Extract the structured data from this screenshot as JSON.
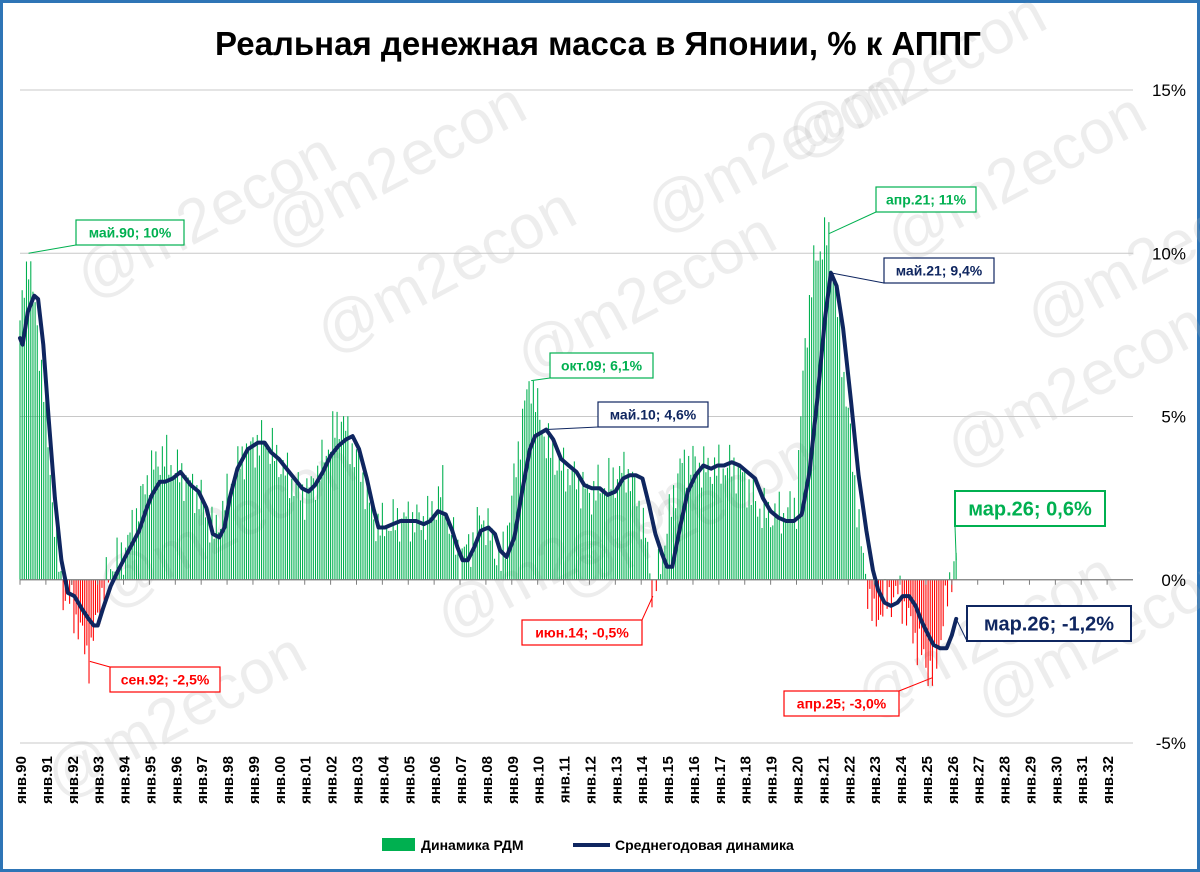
{
  "chart_data": {
    "type": "bar+line",
    "title": "Реальная денежная масса в Японии, % к АППГ",
    "y_range": [
      -5,
      15
    ],
    "y_ticks": [
      {
        "value": 15,
        "label": "15%"
      },
      {
        "value": 10,
        "label": "10%"
      },
      {
        "value": 5,
        "label": "5%"
      },
      {
        "value": 0,
        "label": "0%"
      },
      {
        "value": -5,
        "label": "-5%"
      }
    ],
    "x_range": [
      1990,
      2033
    ],
    "x_tick_labels": [
      "янв.90",
      "янв.91",
      "янв.92",
      "янв.93",
      "янв.94",
      "янв.95",
      "янв.96",
      "янв.97",
      "янв.98",
      "янв.99",
      "янв.00",
      "янв.01",
      "янв.02",
      "янв.03",
      "янв.04",
      "янв.05",
      "янв.06",
      "янв.07",
      "янв.08",
      "янв.09",
      "янв.10",
      "янв.11",
      "янв.12",
      "янв.13",
      "янв.14",
      "янв.15",
      "янв.16",
      "янв.17",
      "янв.18",
      "янв.19",
      "янв.20",
      "янв.21",
      "янв.22",
      "янв.23",
      "янв.24",
      "янв.25",
      "янв.26",
      "янв.27",
      "янв.28",
      "янв.29",
      "янв.30",
      "янв.31",
      "янв.32"
    ],
    "grid": true,
    "legend_position": "bottom",
    "positive_color": "#00b050",
    "negative_color": "#ff0000",
    "line_color": "#0f2660",
    "series": [
      {
        "name": "Динамика РДМ",
        "type": "bar",
        "keypoints": [
          [
            1990.0,
            7.8
          ],
          [
            1990.33,
            10.0
          ],
          [
            1990.9,
            6.0
          ],
          [
            1991.3,
            2.0
          ],
          [
            1991.6,
            -0.3
          ],
          [
            1992.0,
            -0.8
          ],
          [
            1992.7,
            -2.5
          ],
          [
            1993.0,
            -1.0
          ],
          [
            1993.5,
            0.4
          ],
          [
            1994.0,
            0.8
          ],
          [
            1994.5,
            2.0
          ],
          [
            1995.0,
            3.3
          ],
          [
            1995.5,
            3.8
          ],
          [
            1996.0,
            3.4
          ],
          [
            1996.5,
            3.0
          ],
          [
            1997.0,
            2.5
          ],
          [
            1997.5,
            1.4
          ],
          [
            1998.0,
            2.5
          ],
          [
            1998.5,
            3.7
          ],
          [
            1999.0,
            4.1
          ],
          [
            1999.5,
            4.3
          ],
          [
            2000.0,
            3.6
          ],
          [
            2000.5,
            3.0
          ],
          [
            2001.0,
            2.6
          ],
          [
            2001.5,
            3.2
          ],
          [
            2002.0,
            4.3
          ],
          [
            2002.4,
            5.0
          ],
          [
            2002.8,
            4.1
          ],
          [
            2003.3,
            3.0
          ],
          [
            2003.7,
            1.8
          ],
          [
            2004.0,
            1.6
          ],
          [
            2004.5,
            1.8
          ],
          [
            2005.0,
            1.9
          ],
          [
            2005.5,
            1.8
          ],
          [
            2006.0,
            2.1
          ],
          [
            2006.3,
            2.9
          ],
          [
            2006.6,
            1.6
          ],
          [
            2007.0,
            0.7
          ],
          [
            2007.5,
            1.2
          ],
          [
            2007.8,
            2.0
          ],
          [
            2008.2,
            1.3
          ],
          [
            2008.6,
            0.4
          ],
          [
            2009.0,
            2.5
          ],
          [
            2009.5,
            5.4
          ],
          [
            2009.75,
            6.1
          ],
          [
            2010.0,
            5.2
          ],
          [
            2010.33,
            4.2
          ],
          [
            2010.8,
            3.5
          ],
          [
            2011.5,
            3.1
          ],
          [
            2012.0,
            2.6
          ],
          [
            2012.5,
            2.9
          ],
          [
            2013.0,
            3.1
          ],
          [
            2013.4,
            3.4
          ],
          [
            2013.8,
            2.7
          ],
          [
            2014.2,
            1.2
          ],
          [
            2014.45,
            -0.5
          ],
          [
            2014.7,
            0.3
          ],
          [
            2015.0,
            1.6
          ],
          [
            2015.5,
            3.5
          ],
          [
            2016.0,
            3.6
          ],
          [
            2016.5,
            3.4
          ],
          [
            2017.0,
            3.4
          ],
          [
            2017.5,
            3.5
          ],
          [
            2018.0,
            3.1
          ],
          [
            2018.5,
            2.2
          ],
          [
            2019.0,
            2.0
          ],
          [
            2019.5,
            2.0
          ],
          [
            2020.0,
            2.3
          ],
          [
            2020.3,
            7.0
          ],
          [
            2020.7,
            9.8
          ],
          [
            2021.25,
            10.6
          ],
          [
            2021.6,
            8.0
          ],
          [
            2022.0,
            5.0
          ],
          [
            2022.5,
            1.0
          ],
          [
            2022.8,
            -0.5
          ],
          [
            2023.0,
            -1.3
          ],
          [
            2023.5,
            -0.6
          ],
          [
            2024.0,
            -0.4
          ],
          [
            2024.3,
            -1.2
          ],
          [
            2024.8,
            -2.2
          ],
          [
            2025.25,
            -3.0
          ],
          [
            2025.6,
            -1.6
          ],
          [
            2025.85,
            -0.4
          ],
          [
            2026.0,
            0.3
          ],
          [
            2026.17,
            0.6
          ]
        ]
      },
      {
        "name": "Среднегодовая динамика",
        "type": "line",
        "points": [
          [
            1990.0,
            7.4
          ],
          [
            1990.1,
            7.2
          ],
          [
            1990.3,
            8.2
          ],
          [
            1990.55,
            8.7
          ],
          [
            1990.7,
            8.6
          ],
          [
            1990.9,
            7.2
          ],
          [
            1991.1,
            5.0
          ],
          [
            1991.35,
            2.5
          ],
          [
            1991.6,
            0.6
          ],
          [
            1991.85,
            -0.4
          ],
          [
            1992.1,
            -0.5
          ],
          [
            1992.4,
            -0.9
          ],
          [
            1992.65,
            -1.2
          ],
          [
            1992.85,
            -1.4
          ],
          [
            1993.0,
            -1.4
          ],
          [
            1993.2,
            -0.9
          ],
          [
            1993.5,
            -0.2
          ],
          [
            1993.8,
            0.3
          ],
          [
            1994.2,
            0.9
          ],
          [
            1994.6,
            1.5
          ],
          [
            1994.9,
            2.2
          ],
          [
            1995.1,
            2.6
          ],
          [
            1995.4,
            3.0
          ],
          [
            1995.6,
            3.0
          ],
          [
            1995.9,
            3.1
          ],
          [
            1996.2,
            3.3
          ],
          [
            1996.6,
            2.9
          ],
          [
            1996.9,
            2.7
          ],
          [
            1997.2,
            2.2
          ],
          [
            1997.45,
            1.4
          ],
          [
            1997.7,
            1.3
          ],
          [
            1997.9,
            1.6
          ],
          [
            1998.1,
            2.5
          ],
          [
            1998.4,
            3.4
          ],
          [
            1998.8,
            4.0
          ],
          [
            1999.2,
            4.2
          ],
          [
            1999.45,
            4.2
          ],
          [
            1999.7,
            3.9
          ],
          [
            2000.0,
            3.7
          ],
          [
            2000.3,
            3.4
          ],
          [
            2000.6,
            3.1
          ],
          [
            2000.9,
            2.8
          ],
          [
            2001.15,
            2.7
          ],
          [
            2001.4,
            2.9
          ],
          [
            2001.7,
            3.3
          ],
          [
            2002.0,
            3.8
          ],
          [
            2002.3,
            4.1
          ],
          [
            2002.6,
            4.3
          ],
          [
            2002.85,
            4.4
          ],
          [
            2003.1,
            4.0
          ],
          [
            2003.4,
            3.1
          ],
          [
            2003.65,
            2.2
          ],
          [
            2003.85,
            1.6
          ],
          [
            2004.1,
            1.6
          ],
          [
            2004.4,
            1.7
          ],
          [
            2004.7,
            1.8
          ],
          [
            2005.0,
            1.8
          ],
          [
            2005.3,
            1.8
          ],
          [
            2005.6,
            1.7
          ],
          [
            2005.85,
            1.8
          ],
          [
            2006.15,
            2.1
          ],
          [
            2006.45,
            2.0
          ],
          [
            2006.7,
            1.5
          ],
          [
            2006.9,
            1.0
          ],
          [
            2007.1,
            0.6
          ],
          [
            2007.3,
            0.6
          ],
          [
            2007.55,
            1.0
          ],
          [
            2007.8,
            1.5
          ],
          [
            2008.1,
            1.6
          ],
          [
            2008.35,
            1.4
          ],
          [
            2008.55,
            0.9
          ],
          [
            2008.8,
            0.7
          ],
          [
            2009.1,
            1.3
          ],
          [
            2009.4,
            2.7
          ],
          [
            2009.7,
            4.0
          ],
          [
            2009.9,
            4.4
          ],
          [
            2010.33,
            4.6
          ],
          [
            2010.6,
            4.3
          ],
          [
            2010.9,
            3.7
          ],
          [
            2011.2,
            3.5
          ],
          [
            2011.5,
            3.3
          ],
          [
            2011.8,
            2.9
          ],
          [
            2012.1,
            2.8
          ],
          [
            2012.4,
            2.8
          ],
          [
            2012.7,
            2.6
          ],
          [
            2013.0,
            2.7
          ],
          [
            2013.3,
            3.1
          ],
          [
            2013.55,
            3.2
          ],
          [
            2013.8,
            3.2
          ],
          [
            2014.05,
            3.1
          ],
          [
            2014.3,
            2.3
          ],
          [
            2014.55,
            1.4
          ],
          [
            2014.8,
            0.8
          ],
          [
            2015.0,
            0.4
          ],
          [
            2015.2,
            0.4
          ],
          [
            2015.5,
            1.6
          ],
          [
            2015.8,
            2.7
          ],
          [
            2016.1,
            3.2
          ],
          [
            2016.4,
            3.5
          ],
          [
            2016.7,
            3.4
          ],
          [
            2016.95,
            3.5
          ],
          [
            2017.2,
            3.5
          ],
          [
            2017.5,
            3.6
          ],
          [
            2017.8,
            3.5
          ],
          [
            2018.1,
            3.3
          ],
          [
            2018.4,
            3.1
          ],
          [
            2018.7,
            2.5
          ],
          [
            2019.0,
            2.1
          ],
          [
            2019.3,
            1.9
          ],
          [
            2019.6,
            1.8
          ],
          [
            2019.9,
            1.8
          ],
          [
            2020.2,
            2.0
          ],
          [
            2020.5,
            3.3
          ],
          [
            2020.8,
            5.5
          ],
          [
            2021.1,
            8.0
          ],
          [
            2021.33,
            9.4
          ],
          [
            2021.55,
            9.0
          ],
          [
            2021.8,
            7.7
          ],
          [
            2022.1,
            5.5
          ],
          [
            2022.4,
            3.2
          ],
          [
            2022.7,
            1.5
          ],
          [
            2022.95,
            0.3
          ],
          [
            2023.15,
            -0.3
          ],
          [
            2023.4,
            -0.7
          ],
          [
            2023.65,
            -0.8
          ],
          [
            2023.9,
            -0.7
          ],
          [
            2024.1,
            -0.5
          ],
          [
            2024.35,
            -0.5
          ],
          [
            2024.6,
            -0.8
          ],
          [
            2024.85,
            -1.3
          ],
          [
            2025.1,
            -1.7
          ],
          [
            2025.3,
            -2.0
          ],
          [
            2025.55,
            -2.1
          ],
          [
            2025.8,
            -2.1
          ],
          [
            2026.0,
            -1.7
          ],
          [
            2026.17,
            -1.2
          ]
        ]
      }
    ],
    "annotations": [
      {
        "label": "май.90; 10%",
        "x": 1990.33,
        "y": 10.0,
        "color": "#00b050",
        "size": "small"
      },
      {
        "label": "сен.92; -2,5%",
        "x": 1992.7,
        "y": -2.5,
        "color": "#ff0000",
        "size": "small"
      },
      {
        "label": "окт.09; 6,1%",
        "x": 2009.75,
        "y": 6.1,
        "color": "#00b050",
        "size": "small"
      },
      {
        "label": "май.10; 4,6%",
        "x": 2010.33,
        "y": 4.6,
        "color": "#0f2660",
        "size": "small"
      },
      {
        "label": "июн.14; -0,5%",
        "x": 2014.45,
        "y": -0.5,
        "color": "#ff0000",
        "size": "small"
      },
      {
        "label": "апр.21; 11%",
        "x": 2021.25,
        "y": 10.6,
        "color": "#00b050",
        "size": "small"
      },
      {
        "label": "май.21; 9,4%",
        "x": 2021.33,
        "y": 9.4,
        "color": "#0f2660",
        "size": "small"
      },
      {
        "label": "апр.25; -3,0%",
        "x": 2025.25,
        "y": -3.0,
        "color": "#ff0000",
        "size": "small"
      },
      {
        "label": "мар.26; 0,6%",
        "x": 2026.17,
        "y": 0.6,
        "color": "#00b050",
        "size": "large"
      },
      {
        "label": "мар.26; -1,2%",
        "x": 2026.17,
        "y": -1.2,
        "color": "#0f2660",
        "size": "large"
      }
    ],
    "watermark": "@m2econ"
  }
}
